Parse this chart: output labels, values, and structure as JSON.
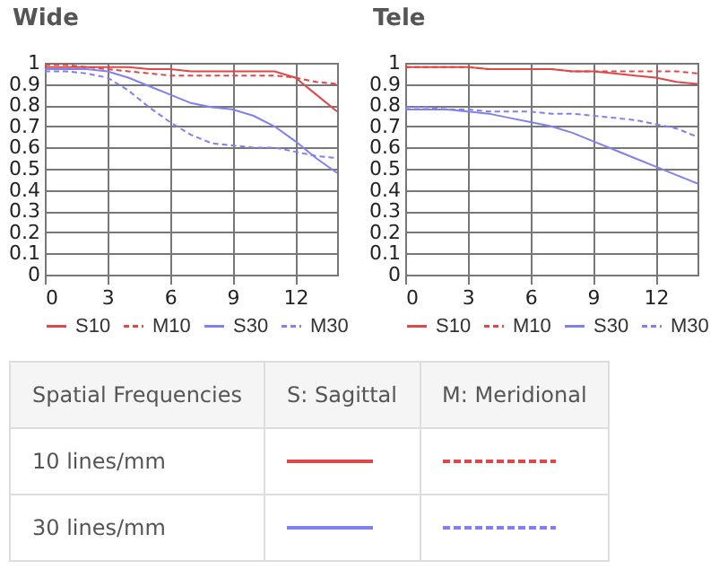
{
  "chart_data": [
    {
      "type": "line",
      "title": "Wide",
      "x": [
        0,
        1,
        2,
        3,
        4,
        5,
        6,
        7,
        8,
        9,
        10,
        11,
        12,
        13,
        14
      ],
      "xlim": [
        0,
        14
      ],
      "xticks": [
        0,
        3,
        6,
        9,
        12
      ],
      "ylim": [
        0,
        1
      ],
      "yticks": [
        0,
        0.1,
        0.2,
        0.3,
        0.4,
        0.5,
        0.6,
        0.7,
        0.8,
        0.9,
        1
      ],
      "grid": true,
      "legend": "bottom",
      "series": [
        {
          "name": "S10",
          "color": "#e04848",
          "line_style": "solid",
          "values": [
            0.98,
            0.98,
            0.98,
            0.98,
            0.98,
            0.97,
            0.97,
            0.96,
            0.96,
            0.96,
            0.96,
            0.96,
            0.93,
            0.85,
            0.77
          ]
        },
        {
          "name": "M10",
          "color": "#e04848",
          "line_style": "dashed",
          "values": [
            0.99,
            0.99,
            0.98,
            0.97,
            0.96,
            0.95,
            0.94,
            0.94,
            0.94,
            0.94,
            0.94,
            0.94,
            0.93,
            0.91,
            0.9
          ]
        },
        {
          "name": "S30",
          "color": "#8080f0",
          "line_style": "solid",
          "values": [
            0.97,
            0.97,
            0.97,
            0.96,
            0.93,
            0.89,
            0.85,
            0.81,
            0.79,
            0.78,
            0.75,
            0.7,
            0.63,
            0.55,
            0.48
          ]
        },
        {
          "name": "M30",
          "color": "#8080f0",
          "line_style": "dashed",
          "values": [
            0.96,
            0.96,
            0.95,
            0.93,
            0.87,
            0.79,
            0.72,
            0.66,
            0.62,
            0.61,
            0.6,
            0.6,
            0.58,
            0.56,
            0.55
          ]
        }
      ]
    },
    {
      "type": "line",
      "title": "Tele",
      "x": [
        0,
        1,
        2,
        3,
        4,
        5,
        6,
        7,
        8,
        9,
        10,
        11,
        12,
        13,
        14
      ],
      "xlim": [
        0,
        14
      ],
      "xticks": [
        0,
        3,
        6,
        9,
        12
      ],
      "ylim": [
        0,
        1
      ],
      "yticks": [
        0,
        0.1,
        0.2,
        0.3,
        0.4,
        0.5,
        0.6,
        0.7,
        0.8,
        0.9,
        1
      ],
      "grid": true,
      "legend": "bottom",
      "series": [
        {
          "name": "S10",
          "color": "#e04848",
          "line_style": "solid",
          "values": [
            0.98,
            0.98,
            0.98,
            0.98,
            0.97,
            0.97,
            0.97,
            0.97,
            0.96,
            0.96,
            0.95,
            0.94,
            0.93,
            0.91,
            0.9
          ]
        },
        {
          "name": "M10",
          "color": "#e04848",
          "line_style": "dashed",
          "values": [
            0.98,
            0.98,
            0.98,
            0.98,
            0.97,
            0.97,
            0.97,
            0.97,
            0.96,
            0.96,
            0.96,
            0.96,
            0.96,
            0.96,
            0.95
          ]
        },
        {
          "name": "S30",
          "color": "#8080f0",
          "line_style": "solid",
          "values": [
            0.78,
            0.78,
            0.78,
            0.77,
            0.76,
            0.74,
            0.72,
            0.7,
            0.67,
            0.63,
            0.59,
            0.55,
            0.51,
            0.47,
            0.43
          ]
        },
        {
          "name": "M30",
          "color": "#8080f0",
          "line_style": "dashed",
          "values": [
            0.79,
            0.79,
            0.78,
            0.78,
            0.77,
            0.77,
            0.77,
            0.76,
            0.76,
            0.75,
            0.74,
            0.73,
            0.71,
            0.69,
            0.65
          ]
        }
      ]
    },
    {
      "type": "other",
      "categories": [
        "Spatial Frequencies",
        "S: Sagittal",
        "M: Meridional"
      ],
      "y_categories": [
        "10 lines/mm",
        "30 lines/mm"
      ]
    }
  ]
}
